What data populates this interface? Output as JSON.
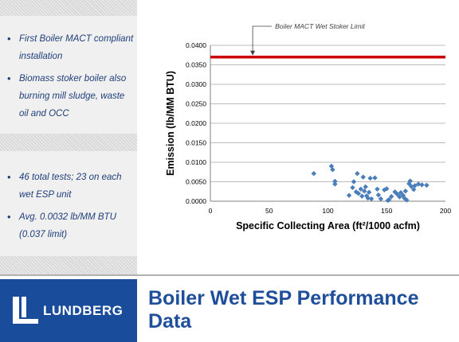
{
  "left_panel": {
    "group1": [
      "First Boiler MACT compliant installation",
      "Biomass stoker boiler also burning mill sludge, waste oil and OCC"
    ],
    "group2": [
      "46 total tests; 23 on each wet ESP unit",
      "Avg. 0.0032 lb/MM BTU (0.037 limit)"
    ],
    "bullet_glyph": "•"
  },
  "footer": {
    "logo_text": "LUNDBERG",
    "title": "Boiler Wet ESP Performance Data",
    "brand_color": "#1a4c9c"
  },
  "chart_data": {
    "type": "scatter",
    "xlabel": "Specific Collecting Area (ft²/1000 acfm)",
    "ylabel": "Emission (lb/MM BTU)",
    "xlim": [
      0,
      200
    ],
    "ylim": [
      0,
      0.04
    ],
    "x_ticks": [
      "0",
      "50",
      "100",
      "150",
      "200"
    ],
    "y_ticks": [
      "0.0000",
      "0.0050",
      "0.0100",
      "0.0150",
      "0.0200",
      "0.0250",
      "0.0300",
      "0.0350",
      "0.0400"
    ],
    "grid": true,
    "limit_line": {
      "value": 0.037,
      "label": "Boiler MACT Wet Stoker Limit",
      "color": "#cc0000"
    },
    "marker_color": "#4a7ebb",
    "points": [
      [
        88,
        0.0071
      ],
      [
        103,
        0.009
      ],
      [
        104,
        0.0081
      ],
      [
        106,
        0.0051
      ],
      [
        106,
        0.0044
      ],
      [
        118,
        0.0015
      ],
      [
        121,
        0.0035
      ],
      [
        122,
        0.005
      ],
      [
        124,
        0.0024
      ],
      [
        125,
        0.0071
      ],
      [
        126,
        0.002
      ],
      [
        128,
        0.0031
      ],
      [
        129,
        0.0013
      ],
      [
        130,
        0.0062
      ],
      [
        131,
        0.0026
      ],
      [
        132,
        0.0037
      ],
      [
        133,
        0.0014
      ],
      [
        134,
        0.0008
      ],
      [
        135,
        0.0023
      ],
      [
        136,
        0.0059
      ],
      [
        137,
        0.0006
      ],
      [
        140,
        0.006
      ],
      [
        142,
        0.0031
      ],
      [
        143,
        0.0016
      ],
      [
        145,
        0.0006
      ],
      [
        148,
        0.0029
      ],
      [
        150,
        0.0032
      ],
      [
        151,
        0.0002
      ],
      [
        152,
        0.0004
      ],
      [
        154,
        0.0012
      ],
      [
        157,
        0.0024
      ],
      [
        159,
        0.0018
      ],
      [
        161,
        0.0011
      ],
      [
        162,
        0.0022
      ],
      [
        164,
        0.0015
      ],
      [
        165,
        0.0008
      ],
      [
        167,
        0.0003
      ],
      [
        169,
        0.0045
      ],
      [
        170,
        0.0052
      ],
      [
        171,
        0.0038
      ],
      [
        173,
        0.003
      ],
      [
        174,
        0.004
      ],
      [
        177,
        0.0044
      ],
      [
        180,
        0.0042
      ],
      [
        184,
        0.0041
      ],
      [
        166,
        0.0026
      ]
    ]
  }
}
